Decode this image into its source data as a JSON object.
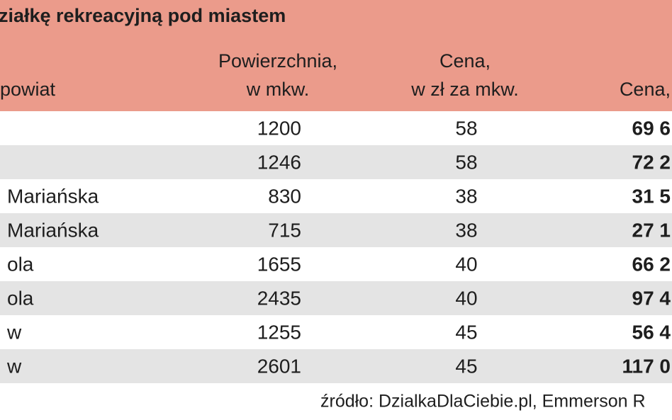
{
  "title": "ziałkę rekreacyjną pod miastem",
  "table": {
    "columns": [
      [
        "powiat"
      ],
      [
        "Powierzchnia,",
        "w mkw."
      ],
      [
        "Cena,",
        "w zł za mkw."
      ],
      [
        "Cena,"
      ]
    ],
    "rows": [
      [
        null,
        "1200",
        "58",
        "69 6"
      ],
      [
        null,
        "1246",
        "58",
        "72 2"
      ],
      [
        "Mariańska",
        "830",
        "38",
        "31 5"
      ],
      [
        "Mariańska",
        "715",
        "38",
        "27 1"
      ],
      [
        "ola",
        "1655",
        "40",
        "66 2"
      ],
      [
        "ola",
        "2435",
        "40",
        "97 4"
      ],
      [
        "w",
        "1255",
        "45",
        "56 4"
      ],
      [
        "w",
        "2601",
        "45",
        "117 0"
      ]
    ]
  },
  "source": "źródło: DzialkaDlaCiebie.pl, Emmerson R"
}
